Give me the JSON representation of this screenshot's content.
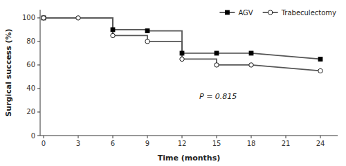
{
  "chart_data": {
    "type": "line",
    "xlabel": "Time (months)",
    "ylabel": "Surgical success (%)",
    "xlim": [
      -0.3,
      25.5
    ],
    "ylim": [
      0,
      107
    ],
    "xticks": [
      0,
      3,
      6,
      9,
      12,
      15,
      18,
      21,
      24
    ],
    "yticks": [
      0,
      20,
      40,
      60,
      80,
      100
    ],
    "grid": false,
    "legend": "upper right",
    "series": [
      {
        "name": "AGV",
        "color": "#555555",
        "marker": "square",
        "x": [
          0,
          0,
          6,
          6,
          9,
          9,
          12,
          12,
          15,
          15,
          18,
          18,
          24
        ],
        "values": [
          100,
          100,
          100,
          90,
          90,
          89,
          89,
          70,
          70,
          70,
          70,
          70,
          65
        ],
        "marker_x": [
          0,
          6,
          9,
          12,
          15,
          18,
          24
        ],
        "marker_values": [
          100,
          90,
          89,
          70,
          70,
          70,
          65
        ]
      },
      {
        "name": "Trabeculectomy",
        "color": "#555555",
        "marker": "circle",
        "x": [
          0,
          3,
          3,
          6,
          6,
          9,
          9,
          12,
          12,
          15,
          15,
          18,
          18,
          24
        ],
        "values": [
          100,
          100,
          100,
          100,
          85,
          85,
          80,
          80,
          65,
          65,
          60,
          60,
          60,
          55
        ],
        "marker_x": [
          0,
          3,
          6,
          9,
          12,
          15,
          18,
          24
        ],
        "marker_values": [
          100,
          100,
          85,
          80,
          65,
          60,
          60,
          55
        ]
      }
    ],
    "annotations": [
      {
        "text": "P = 0.815",
        "x": 13.5,
        "y": 30
      }
    ]
  }
}
